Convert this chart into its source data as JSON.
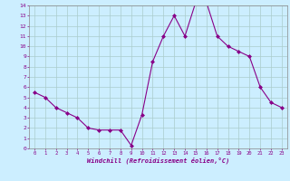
{
  "x": [
    0,
    1,
    2,
    3,
    4,
    5,
    6,
    7,
    8,
    9,
    10,
    11,
    12,
    13,
    14,
    15,
    16,
    17,
    18,
    19,
    20,
    21,
    22,
    23
  ],
  "y": [
    5.5,
    5.0,
    4.0,
    3.5,
    3.0,
    2.0,
    1.8,
    1.8,
    1.8,
    0.3,
    3.3,
    8.5,
    11.0,
    13.0,
    11.0,
    14.3,
    14.3,
    11.0,
    10.0,
    9.5,
    9.0,
    6.0,
    4.5,
    4.0
  ],
  "line_color": "#880088",
  "marker": "D",
  "marker_size": 2.0,
  "bg_color": "#cceeff",
  "grid_color": "#aacccc",
  "xlabel": "Windchill (Refroidissement éolien,°C)",
  "xlim": [
    -0.5,
    23.5
  ],
  "ylim": [
    0,
    14
  ],
  "xticks": [
    0,
    1,
    2,
    3,
    4,
    5,
    6,
    7,
    8,
    9,
    10,
    11,
    12,
    13,
    14,
    15,
    16,
    17,
    18,
    19,
    20,
    21,
    22,
    23
  ],
  "yticks": [
    0,
    1,
    2,
    3,
    4,
    5,
    6,
    7,
    8,
    9,
    10,
    11,
    12,
    13,
    14
  ],
  "tick_color": "#880088",
  "label_color": "#880088",
  "spine_color": "#888888"
}
